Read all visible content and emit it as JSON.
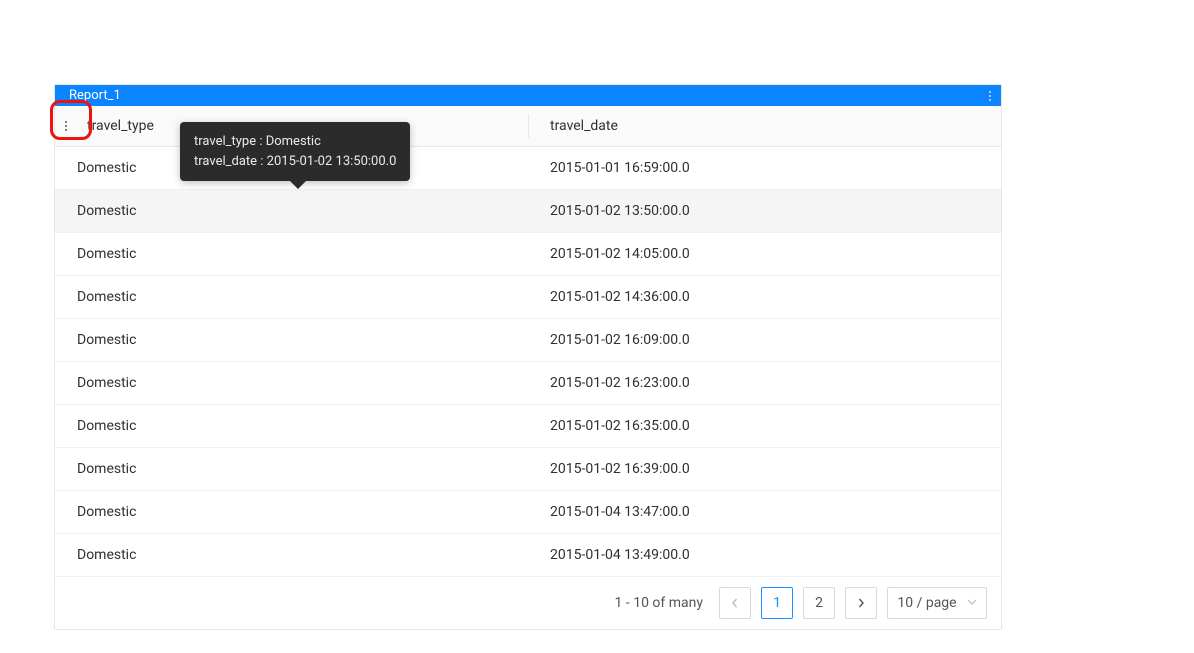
{
  "colors": {
    "primary": "#0a84ff",
    "accent": "#1890ff",
    "tooltip_bg": "#2b2b2b",
    "annotation": "#e11"
  },
  "panel": {
    "title": "Report_1"
  },
  "table": {
    "columns": [
      "travel_type",
      "travel_date"
    ],
    "hovered_row_index": 1,
    "rows": [
      [
        "Domestic",
        "2015-01-01 16:59:00.0"
      ],
      [
        "Domestic",
        "2015-01-02 13:50:00.0"
      ],
      [
        "Domestic",
        "2015-01-02 14:05:00.0"
      ],
      [
        "Domestic",
        "2015-01-02 14:36:00.0"
      ],
      [
        "Domestic",
        "2015-01-02 16:09:00.0"
      ],
      [
        "Domestic",
        "2015-01-02 16:23:00.0"
      ],
      [
        "Domestic",
        "2015-01-02 16:35:00.0"
      ],
      [
        "Domestic",
        "2015-01-02 16:39:00.0"
      ],
      [
        "Domestic",
        "2015-01-04 13:47:00.0"
      ],
      [
        "Domestic",
        "2015-01-04 13:49:00.0"
      ]
    ]
  },
  "tooltip": {
    "line1": "travel_type : Domestic",
    "line2": "travel_date : 2015-01-02 13:50:00.0"
  },
  "pagination": {
    "range_text": "1 - 10 of many",
    "pages": [
      "1",
      "2"
    ],
    "active_page_index": 0,
    "page_size_label": "10 / page"
  }
}
